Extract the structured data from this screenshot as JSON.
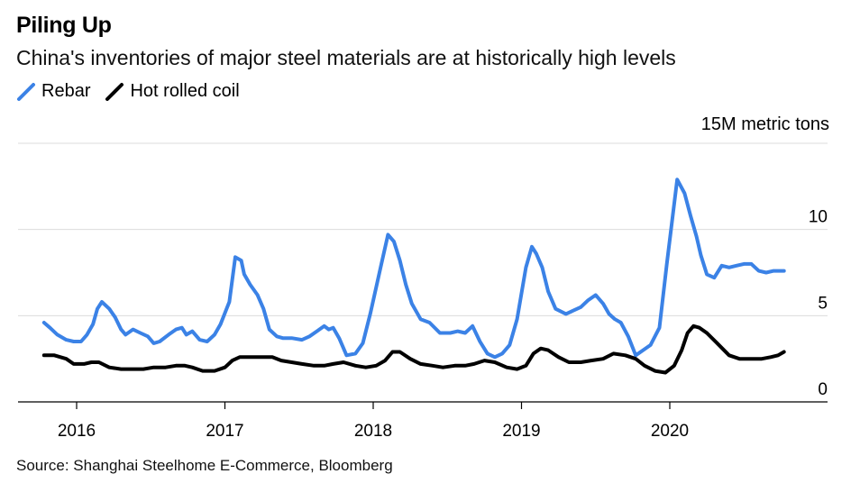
{
  "chart_data": {
    "type": "line",
    "title": "Piling Up",
    "subtitle": "China's inventories of major steel materials are at historically high levels",
    "unit_label": "15M metric tons",
    "source": "Source: Shanghai Steelhome E-Commerce, Bloomberg",
    "ylim": [
      0,
      15
    ],
    "yticks": [
      0,
      5,
      10
    ],
    "xlim": [
      2015.6,
      2021.0
    ],
    "xticks": [
      {
        "value": 2016,
        "label": "2016"
      },
      {
        "value": 2017,
        "label": "2017"
      },
      {
        "value": 2018,
        "label": "2018"
      },
      {
        "value": 2019,
        "label": "2019"
      },
      {
        "value": 2020,
        "label": "2020"
      }
    ],
    "grid": true,
    "legend_position": "top-left",
    "series": [
      {
        "name": "Rebar",
        "color": "#3b82e6",
        "x": [
          2015.78,
          2015.82,
          2015.87,
          2015.93,
          2015.98,
          2016.03,
          2016.07,
          2016.11,
          2016.14,
          2016.17,
          2016.22,
          2016.26,
          2016.3,
          2016.33,
          2016.38,
          2016.43,
          2016.48,
          2016.52,
          2016.56,
          2016.62,
          2016.67,
          2016.71,
          2016.74,
          2016.78,
          2016.83,
          2016.88,
          2016.93,
          2016.97,
          2017.03,
          2017.07,
          2017.11,
          2017.13,
          2017.17,
          2017.22,
          2017.26,
          2017.3,
          2017.35,
          2017.39,
          2017.45,
          2017.52,
          2017.57,
          2017.62,
          2017.67,
          2017.7,
          2017.73,
          2017.77,
          2017.82,
          2017.88,
          2017.93,
          2017.98,
          2018.05,
          2018.1,
          2018.14,
          2018.18,
          2018.22,
          2018.26,
          2018.32,
          2018.38,
          2018.45,
          2018.52,
          2018.57,
          2018.62,
          2018.67,
          2018.72,
          2018.77,
          2018.82,
          2018.87,
          2018.92,
          2018.97,
          2019.03,
          2019.07,
          2019.1,
          2019.14,
          2019.18,
          2019.23,
          2019.3,
          2019.35,
          2019.4,
          2019.45,
          2019.5,
          2019.55,
          2019.59,
          2019.63,
          2019.67,
          2019.72,
          2019.77,
          2019.82,
          2019.87,
          2019.93,
          2019.98,
          2020.05,
          2020.1,
          2020.14,
          2020.18,
          2020.21,
          2020.25,
          2020.3,
          2020.35,
          2020.4,
          2020.45,
          2020.5,
          2020.55,
          2020.6,
          2020.65,
          2020.7,
          2020.73,
          2020.77
        ],
        "values": [
          4.6,
          4.3,
          3.9,
          3.6,
          3.5,
          3.5,
          3.9,
          4.5,
          5.4,
          5.8,
          5.4,
          4.9,
          4.2,
          3.9,
          4.2,
          4.0,
          3.8,
          3.4,
          3.5,
          3.9,
          4.2,
          4.3,
          3.9,
          4.1,
          3.6,
          3.5,
          3.9,
          4.5,
          5.8,
          8.4,
          8.2,
          7.4,
          6.8,
          6.2,
          5.4,
          4.2,
          3.8,
          3.7,
          3.7,
          3.6,
          3.8,
          4.1,
          4.4,
          4.2,
          4.3,
          3.7,
          2.7,
          2.8,
          3.4,
          5.1,
          7.8,
          9.7,
          9.3,
          8.2,
          6.8,
          5.7,
          4.8,
          4.6,
          4.0,
          4.0,
          4.1,
          4.0,
          4.4,
          3.5,
          2.8,
          2.6,
          2.8,
          3.3,
          4.8,
          7.8,
          9.0,
          8.6,
          7.8,
          6.4,
          5.4,
          5.1,
          5.3,
          5.5,
          5.9,
          6.2,
          5.7,
          5.1,
          4.8,
          4.6,
          3.8,
          2.7,
          3.0,
          3.3,
          4.3,
          8.0,
          12.9,
          12.1,
          10.8,
          9.6,
          8.5,
          7.4,
          7.2,
          7.9,
          7.8,
          7.9,
          8.0,
          8.0,
          7.6,
          7.5,
          7.6,
          7.6,
          7.6
        ]
      },
      {
        "name": "Hot rolled coil",
        "color": "#000000",
        "x": [
          2015.78,
          2015.85,
          2015.93,
          2015.98,
          2016.05,
          2016.1,
          2016.15,
          2016.22,
          2016.3,
          2016.38,
          2016.45,
          2016.52,
          2016.6,
          2016.67,
          2016.73,
          2016.78,
          2016.85,
          2016.93,
          2017.0,
          2017.05,
          2017.1,
          2017.17,
          2017.25,
          2017.32,
          2017.38,
          2017.45,
          2017.52,
          2017.6,
          2017.67,
          2017.73,
          2017.8,
          2017.88,
          2017.95,
          2018.02,
          2018.08,
          2018.13,
          2018.18,
          2018.25,
          2018.32,
          2018.4,
          2018.47,
          2018.55,
          2018.62,
          2018.68,
          2018.75,
          2018.82,
          2018.9,
          2018.97,
          2019.03,
          2019.08,
          2019.13,
          2019.18,
          2019.25,
          2019.32,
          2019.4,
          2019.47,
          2019.55,
          2019.62,
          2019.7,
          2019.77,
          2019.83,
          2019.9,
          2019.97,
          2020.03,
          2020.08,
          2020.12,
          2020.16,
          2020.2,
          2020.25,
          2020.32,
          2020.4,
          2020.47,
          2020.55,
          2020.62,
          2020.68,
          2020.73,
          2020.77
        ],
        "values": [
          2.7,
          2.7,
          2.5,
          2.2,
          2.2,
          2.3,
          2.3,
          2.0,
          1.9,
          1.9,
          1.9,
          2.0,
          2.0,
          2.1,
          2.1,
          2.0,
          1.8,
          1.8,
          2.0,
          2.4,
          2.6,
          2.6,
          2.6,
          2.6,
          2.4,
          2.3,
          2.2,
          2.1,
          2.1,
          2.2,
          2.3,
          2.1,
          2.0,
          2.1,
          2.4,
          2.9,
          2.9,
          2.5,
          2.2,
          2.1,
          2.0,
          2.1,
          2.1,
          2.2,
          2.4,
          2.3,
          2.0,
          1.9,
          2.1,
          2.8,
          3.1,
          3.0,
          2.6,
          2.3,
          2.3,
          2.4,
          2.5,
          2.8,
          2.7,
          2.5,
          2.1,
          1.8,
          1.7,
          2.1,
          3.0,
          4.0,
          4.4,
          4.3,
          4.0,
          3.4,
          2.7,
          2.5,
          2.5,
          2.5,
          2.6,
          2.7,
          2.9
        ]
      }
    ]
  }
}
